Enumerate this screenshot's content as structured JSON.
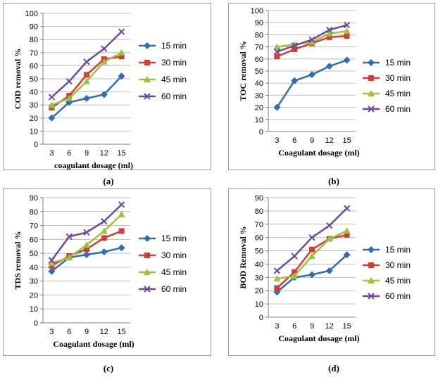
{
  "chart_data": [
    {
      "type": "line",
      "caption": "(a)",
      "ylabel": "COD removal %",
      "xlabel": "coagulant dosage (ml)",
      "categories": [
        "3",
        "6",
        "9",
        "12",
        "15"
      ],
      "ylim": [
        0,
        100
      ],
      "ytick_step": 10,
      "legend_position": "right",
      "series": [
        {
          "name": "15 min",
          "values": [
            20,
            32,
            35,
            38,
            52
          ]
        },
        {
          "name": "30 min",
          "values": [
            28,
            37,
            53,
            65,
            67
          ]
        },
        {
          "name": "45 min",
          "values": [
            30,
            35,
            48,
            63,
            70
          ]
        },
        {
          "name": "60 min",
          "values": [
            36,
            48,
            63,
            73,
            86
          ]
        }
      ]
    },
    {
      "type": "line",
      "caption": "(b)",
      "ylabel": "TOC removal %",
      "xlabel": "Coagulant dosage (ml)",
      "categories": [
        "3",
        "6",
        "9",
        "12",
        "15"
      ],
      "ylim": [
        0,
        100
      ],
      "ytick_step": 10,
      "legend_position": "right",
      "series": [
        {
          "name": "15 min",
          "values": [
            20,
            42,
            47,
            54,
            59
          ]
        },
        {
          "name": "30 min",
          "values": [
            62,
            68,
            73,
            78,
            79
          ]
        },
        {
          "name": "45 min",
          "values": [
            70,
            72,
            74,
            81,
            83
          ]
        },
        {
          "name": "60 min",
          "values": [
            66,
            71,
            76,
            84,
            88
          ]
        }
      ]
    },
    {
      "type": "line",
      "caption": "(c)",
      "ylabel": "TDS removal %",
      "xlabel": "Coagulant dosage (ml)",
      "categories": [
        "3",
        "6",
        "9",
        "12",
        "15"
      ],
      "ylim": [
        0,
        90
      ],
      "ytick_step": 10,
      "legend_position": "right",
      "series": [
        {
          "name": "15 min",
          "values": [
            37,
            47,
            49,
            51,
            54
          ]
        },
        {
          "name": "30 min",
          "values": [
            41,
            48,
            53,
            61,
            66
          ]
        },
        {
          "name": "45 min",
          "values": [
            43,
            47,
            56,
            66,
            78
          ]
        },
        {
          "name": "60 min",
          "values": [
            45,
            62,
            65,
            73,
            85
          ]
        }
      ]
    },
    {
      "type": "line",
      "caption": "(d)",
      "ylabel": "BOD Removal %",
      "xlabel": "Coagulant dosage (ml)",
      "categories": [
        "3",
        "6",
        "9",
        "12",
        "15"
      ],
      "ylim": [
        0,
        90
      ],
      "ytick_step": 10,
      "legend_position": "right",
      "series": [
        {
          "name": "15 min",
          "values": [
            19,
            30,
            32,
            35,
            47
          ]
        },
        {
          "name": "30 min",
          "values": [
            22,
            34,
            51,
            59,
            62
          ]
        },
        {
          "name": "45 min",
          "values": [
            29,
            31,
            46,
            59,
            65
          ]
        },
        {
          "name": "60 min",
          "values": [
            35,
            46,
            60,
            69,
            82
          ]
        }
      ]
    }
  ],
  "series_style": [
    {
      "color": "#2f6fad",
      "marker": "diamond-marker"
    },
    {
      "color": "#d83b33",
      "marker": "square-marker"
    },
    {
      "color": "#9bc33c",
      "marker": "triangle-marker"
    },
    {
      "color": "#6e4a9e",
      "marker": "x-marker"
    }
  ]
}
